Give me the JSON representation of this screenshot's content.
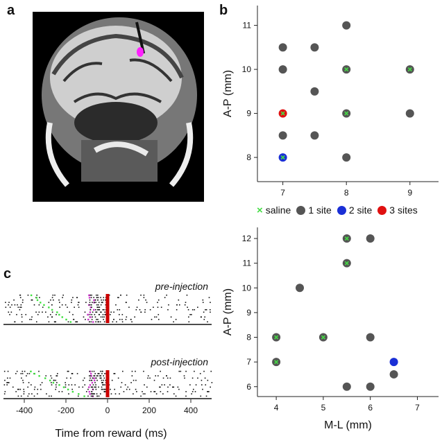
{
  "panels": {
    "a": "a",
    "b": "b",
    "c": "c"
  },
  "legend": {
    "saline_label": "saline",
    "one_site_label": "1 site",
    "two_site_label": "2 site",
    "three_sites_label": "3 sites",
    "saline_mark": "×"
  },
  "colors": {
    "one_site": "#555555",
    "two_site": "#1a2fd6",
    "three_sites": "#e01010",
    "saline": "#44dd44",
    "pre_green": "#3de03d",
    "magenta": "#cc33cc",
    "reward": "#cc0000"
  },
  "chart_data": [
    {
      "type": "scatter",
      "id": "panel-b-top",
      "xlabel": "",
      "ylabel": "A-P (mm)",
      "xlim": [
        6.6,
        9.45
      ],
      "ylim": [
        7.45,
        11.45
      ],
      "x_ticks": [
        7,
        8,
        9
      ],
      "y_ticks": [
        8,
        9,
        10,
        11
      ],
      "points": [
        {
          "x": 8,
          "y": 11,
          "kind": "one_site",
          "saline": false
        },
        {
          "x": 7,
          "y": 10.5,
          "kind": "one_site",
          "saline": false
        },
        {
          "x": 7.5,
          "y": 10.5,
          "kind": "one_site",
          "saline": false
        },
        {
          "x": 7,
          "y": 10,
          "kind": "one_site",
          "saline": false
        },
        {
          "x": 8,
          "y": 10,
          "kind": "one_site",
          "saline": true
        },
        {
          "x": 9,
          "y": 10,
          "kind": "one_site",
          "saline": true
        },
        {
          "x": 7.5,
          "y": 9.5,
          "kind": "one_site",
          "saline": false
        },
        {
          "x": 7,
          "y": 9,
          "kind": "three_sites",
          "saline": true
        },
        {
          "x": 8,
          "y": 9,
          "kind": "one_site",
          "saline": true
        },
        {
          "x": 9,
          "y": 9,
          "kind": "one_site",
          "saline": false
        },
        {
          "x": 7,
          "y": 8.5,
          "kind": "one_site",
          "saline": false
        },
        {
          "x": 7.5,
          "y": 8.5,
          "kind": "one_site",
          "saline": false
        },
        {
          "x": 7,
          "y": 8,
          "kind": "two_site",
          "saline": true
        },
        {
          "x": 8,
          "y": 8,
          "kind": "one_site",
          "saline": false
        }
      ]
    },
    {
      "type": "scatter",
      "id": "panel-b-bottom",
      "xlabel": "M-L (mm)",
      "ylabel": "A-P (mm)",
      "xlim": [
        3.6,
        7.45
      ],
      "ylim": [
        5.6,
        12.45
      ],
      "x_ticks": [
        4,
        5,
        6,
        7
      ],
      "y_ticks": [
        6,
        7,
        8,
        9,
        10,
        11,
        12
      ],
      "points": [
        {
          "x": 5.5,
          "y": 12,
          "kind": "one_site",
          "saline": true
        },
        {
          "x": 6,
          "y": 12,
          "kind": "one_site",
          "saline": false
        },
        {
          "x": 5.5,
          "y": 11,
          "kind": "one_site",
          "saline": true
        },
        {
          "x": 4.5,
          "y": 10,
          "kind": "one_site",
          "saline": false
        },
        {
          "x": 4,
          "y": 8,
          "kind": "one_site",
          "saline": true
        },
        {
          "x": 5,
          "y": 8,
          "kind": "one_site",
          "saline": true
        },
        {
          "x": 6,
          "y": 8,
          "kind": "one_site",
          "saline": false
        },
        {
          "x": 4,
          "y": 7,
          "kind": "one_site",
          "saline": true
        },
        {
          "x": 6.5,
          "y": 7,
          "kind": "two_site",
          "saline": false
        },
        {
          "x": 6.5,
          "y": 6.5,
          "kind": "one_site",
          "saline": false
        },
        {
          "x": 5.5,
          "y": 6,
          "kind": "one_site",
          "saline": false
        },
        {
          "x": 6,
          "y": 6,
          "kind": "one_site",
          "saline": false
        }
      ]
    },
    {
      "type": "raster",
      "id": "panel-c",
      "xlabel": "Time from reward (ms)",
      "xlim": [
        -500,
        500
      ],
      "x_ticks": [
        -400,
        -200,
        0,
        200,
        400
      ],
      "blocks": [
        {
          "label": "pre-injection",
          "rows": 12
        },
        {
          "label": "post-injection",
          "rows": 12
        }
      ]
    }
  ]
}
